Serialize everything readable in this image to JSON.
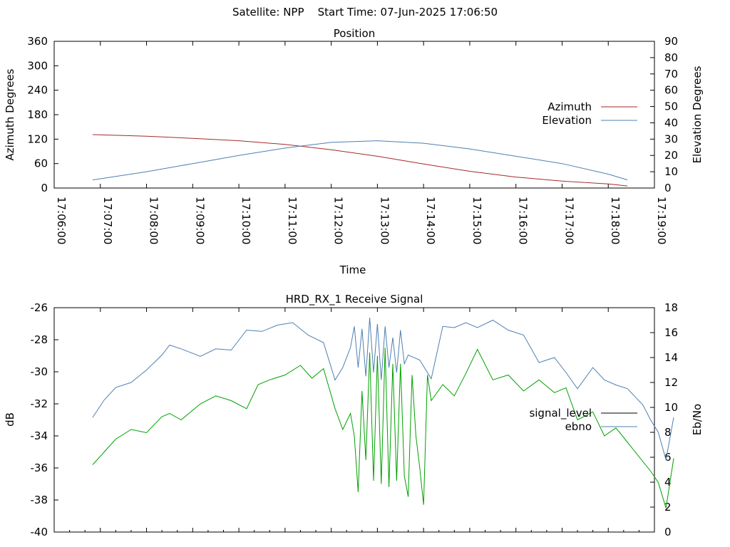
{
  "header": {
    "title": "Satellite: NPP    Start Time: 07-Jun-2025 17:06:50"
  },
  "chart_data": [
    {
      "type": "line",
      "title": "Position",
      "xlabel": "Time",
      "ylabel": "Azimuth Degrees",
      "y2label": "Elevation Degrees",
      "x_ticks": [
        "17:06:00",
        "17:07:00",
        "17:08:00",
        "17:09:00",
        "17:10:00",
        "17:11:00",
        "17:12:00",
        "17:13:00",
        "17:14:00",
        "17:15:00",
        "17:16:00",
        "17:17:00",
        "17:18:00",
        "17:19:00"
      ],
      "xlim": [
        0,
        780
      ],
      "ylim": [
        0,
        360
      ],
      "y_ticks": [
        "0",
        "60",
        "120",
        "180",
        "240",
        "300",
        "360"
      ],
      "y2lim": [
        0,
        90
      ],
      "y2_ticks": [
        "0",
        "10",
        "20",
        "30",
        "40",
        "50",
        "60",
        "70",
        "80",
        "90"
      ],
      "legend_position": "right",
      "series": [
        {
          "name": "Azimuth",
          "axis": "y",
          "color": "#a52a2a",
          "x": [
            50,
            90,
            120,
            180,
            240,
            300,
            360,
            420,
            480,
            540,
            600,
            660,
            720,
            745
          ],
          "y": [
            131,
            129,
            127,
            122,
            116,
            107,
            94,
            78,
            59,
            41,
            27,
            17,
            10,
            5
          ]
        },
        {
          "name": "Elevation",
          "axis": "y2",
          "color": "#4f7fb0",
          "x": [
            50,
            120,
            180,
            240,
            300,
            360,
            420,
            480,
            540,
            600,
            660,
            720,
            745
          ],
          "y": [
            5,
            10,
            15,
            20,
            24.5,
            28,
            29,
            27.5,
            24,
            19.5,
            15,
            8.5,
            5
          ]
        }
      ]
    },
    {
      "type": "line",
      "title": "HRD_RX_1 Receive Signal",
      "ylabel": "dB",
      "y2label": "Eb/No",
      "ylim": [
        -40,
        -26
      ],
      "y_ticks": [
        "-40",
        "-38",
        "-36",
        "-34",
        "-32",
        "-30",
        "-28",
        "-26"
      ],
      "y2lim": [
        0,
        18
      ],
      "y2_ticks": [
        "0",
        "2",
        "4",
        "6",
        "8",
        "10",
        "12",
        "14",
        "16",
        "18"
      ],
      "legend_position": "right",
      "series": [
        {
          "name": "signal_level",
          "axis": "y",
          "color": "#000000",
          "legend_only": true
        },
        {
          "name": "ebno",
          "axis": "y2",
          "color": "#4f7fb0",
          "points": [
            [
              0,
              9.2
            ],
            [
              15,
              10.6
            ],
            [
              30,
              11.6
            ],
            [
              50,
              12.0
            ],
            [
              70,
              13.0
            ],
            [
              90,
              14.2
            ],
            [
              100,
              15.0
            ],
            [
              115,
              14.7
            ],
            [
              140,
              14.1
            ],
            [
              160,
              14.7
            ],
            [
              180,
              14.6
            ],
            [
              200,
              16.2
            ],
            [
              220,
              16.1
            ],
            [
              240,
              16.6
            ],
            [
              260,
              16.8
            ],
            [
              280,
              15.8
            ],
            [
              300,
              15.2
            ],
            [
              315,
              12.2
            ],
            [
              325,
              13.2
            ],
            [
              335,
              14.8
            ],
            [
              340,
              16.5
            ],
            [
              345,
              13.2
            ],
            [
              350,
              16.3
            ],
            [
              355,
              12.5
            ],
            [
              360,
              17.2
            ],
            [
              365,
              12.8
            ],
            [
              370,
              16.7
            ],
            [
              375,
              12.2
            ],
            [
              380,
              16.5
            ],
            [
              385,
              13.2
            ],
            [
              390,
              15.6
            ],
            [
              395,
              12.8
            ],
            [
              400,
              16.2
            ],
            [
              405,
              13.5
            ],
            [
              410,
              14.2
            ],
            [
              425,
              13.8
            ],
            [
              440,
              12.3
            ],
            [
              455,
              16.5
            ],
            [
              470,
              16.4
            ],
            [
              485,
              16.8
            ],
            [
              500,
              16.4
            ],
            [
              520,
              17.0
            ],
            [
              540,
              16.2
            ],
            [
              560,
              15.8
            ],
            [
              580,
              13.6
            ],
            [
              600,
              14.0
            ],
            [
              615,
              12.8
            ],
            [
              630,
              11.5
            ],
            [
              650,
              13.2
            ],
            [
              665,
              12.2
            ],
            [
              680,
              11.8
            ],
            [
              695,
              11.5
            ],
            [
              715,
              10.2
            ],
            [
              725,
              9.0
            ],
            [
              735,
              8.0
            ],
            [
              745,
              5.8
            ],
            [
              755,
              9.2
            ]
          ]
        },
        {
          "name": "",
          "axis": "y",
          "color": "#00a000",
          "points": [
            [
              0,
              -35.8
            ],
            [
              15,
              -35.0
            ],
            [
              30,
              -34.2
            ],
            [
              50,
              -33.6
            ],
            [
              70,
              -33.8
            ],
            [
              90,
              -32.8
            ],
            [
              100,
              -32.6
            ],
            [
              115,
              -33.0
            ],
            [
              140,
              -32.0
            ],
            [
              160,
              -31.5
            ],
            [
              180,
              -31.8
            ],
            [
              200,
              -32.3
            ],
            [
              215,
              -30.8
            ],
            [
              230,
              -30.5
            ],
            [
              250,
              -30.2
            ],
            [
              270,
              -29.6
            ],
            [
              285,
              -30.4
            ],
            [
              300,
              -29.8
            ],
            [
              315,
              -32.3
            ],
            [
              325,
              -33.6
            ],
            [
              335,
              -32.6
            ],
            [
              340,
              -34.0
            ],
            [
              345,
              -37.5
            ],
            [
              350,
              -31.2
            ],
            [
              355,
              -35.5
            ],
            [
              360,
              -28.8
            ],
            [
              365,
              -36.8
            ],
            [
              370,
              -29.0
            ],
            [
              375,
              -37.0
            ],
            [
              380,
              -28.5
            ],
            [
              385,
              -37.2
            ],
            [
              390,
              -29.5
            ],
            [
              395,
              -36.8
            ],
            [
              400,
              -29.5
            ],
            [
              405,
              -36.5
            ],
            [
              410,
              -37.8
            ],
            [
              415,
              -30.2
            ],
            [
              420,
              -34.0
            ],
            [
              425,
              -36.0
            ],
            [
              430,
              -38.3
            ],
            [
              435,
              -30.2
            ],
            [
              440,
              -31.8
            ],
            [
              455,
              -30.8
            ],
            [
              470,
              -31.5
            ],
            [
              485,
              -30.1
            ],
            [
              500,
              -28.6
            ],
            [
              520,
              -30.5
            ],
            [
              540,
              -30.2
            ],
            [
              560,
              -31.2
            ],
            [
              580,
              -30.5
            ],
            [
              600,
              -31.3
            ],
            [
              615,
              -31.0
            ],
            [
              630,
              -33.0
            ],
            [
              650,
              -32.5
            ],
            [
              665,
              -34.0
            ],
            [
              680,
              -33.5
            ],
            [
              695,
              -34.4
            ],
            [
              715,
              -35.6
            ],
            [
              725,
              -36.2
            ],
            [
              735,
              -36.9
            ],
            [
              745,
              -38.5
            ],
            [
              755,
              -35.4
            ]
          ]
        }
      ]
    }
  ]
}
